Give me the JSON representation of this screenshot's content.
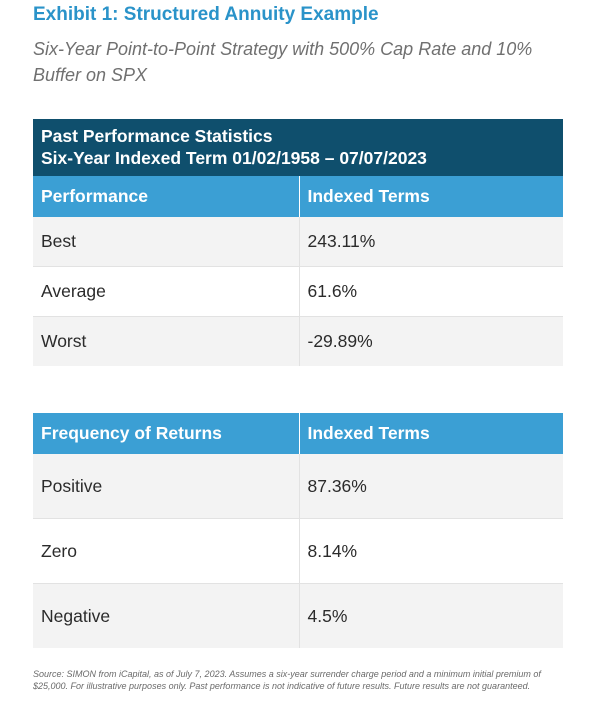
{
  "header": {
    "title": "Exhibit 1: Structured Annuity Example",
    "subtitle": "Six-Year Point-to-Point Strategy with 500% Cap Rate and 10% Buffer on SPX"
  },
  "banner": {
    "line1": "Past Performance Statistics",
    "line2": "Six-Year Indexed Term 01/02/1958 – 07/07/2023"
  },
  "performance_table": {
    "headers": [
      "Performance",
      "Indexed Terms"
    ],
    "rows": [
      {
        "label": "Best",
        "value": "243.11%"
      },
      {
        "label": "Average",
        "value": "61.6%"
      },
      {
        "label": "Worst",
        "value": "-29.89%"
      }
    ]
  },
  "frequency_table": {
    "headers": [
      "Frequency of Returns",
      "Indexed Terms"
    ],
    "rows": [
      {
        "label": "Positive",
        "value": "87.36%"
      },
      {
        "label": "Zero",
        "value": "8.14%"
      },
      {
        "label": "Negative",
        "value": "4.5%"
      }
    ]
  },
  "footer": {
    "source": "Source: SIMON from iCapital, as of July 7, 2023. Assumes a six-year surrender charge period and a minimum initial premium of $25,000. For illustrative purposes only. Past performance is not indicative of future results. Future results are not guaranteed."
  },
  "colors": {
    "title": "#2a93c9",
    "banner": "#0f4f6d",
    "header_row": "#3b9fd4",
    "shaded_row": "#f3f3f3"
  }
}
